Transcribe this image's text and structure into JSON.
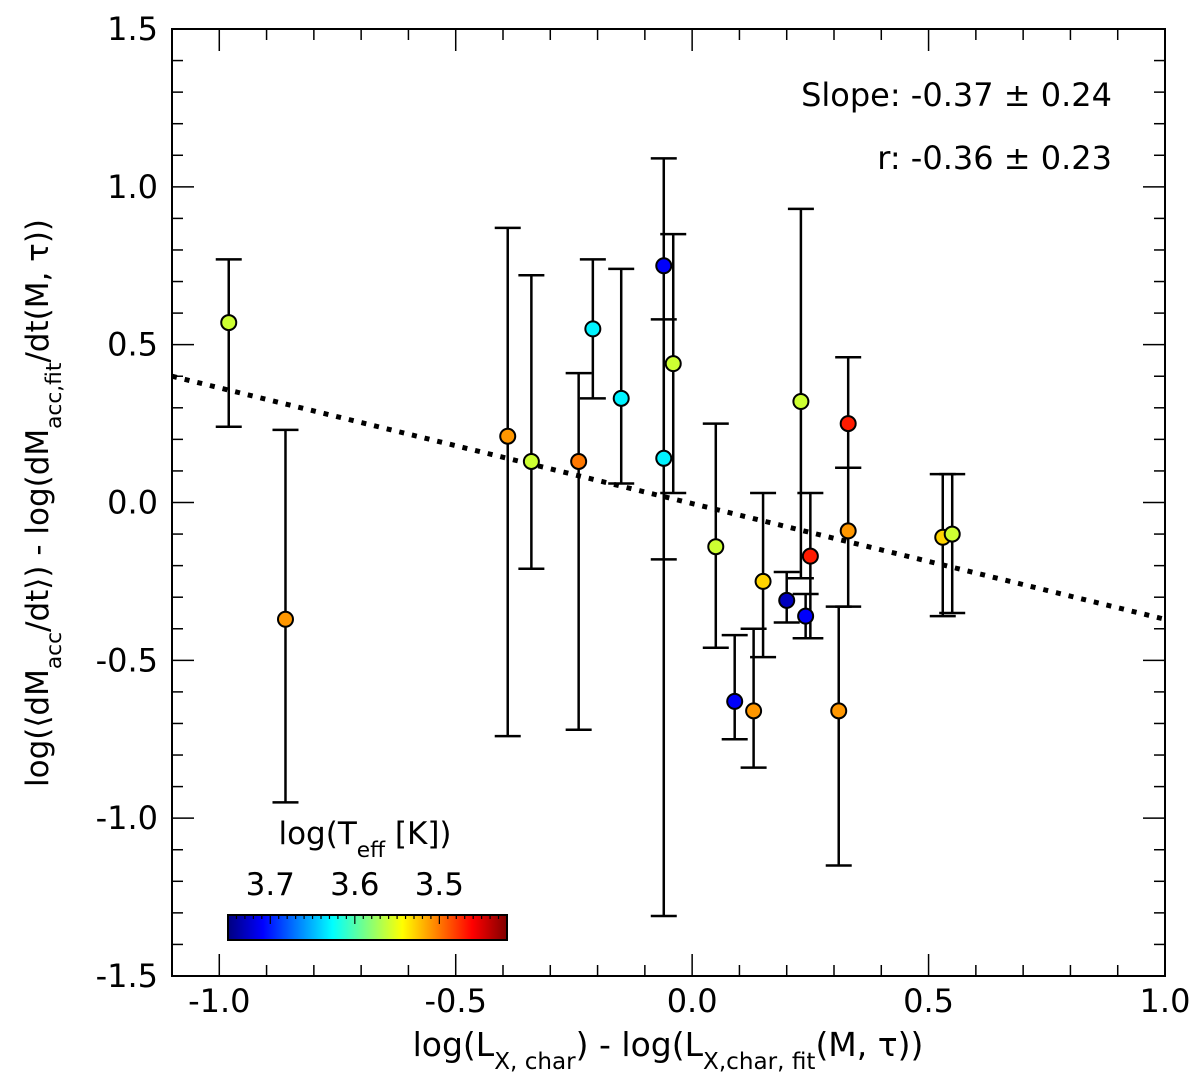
{
  "chart_data": {
    "type": "scatter",
    "title": "",
    "xlabel": "log(L_X, char) - log(L_X,char, fit(M, τ))",
    "ylabel": "log(⟨dM_acc/dt⟩) - log(dM_acc,fit/dt(M, τ))",
    "xlim": [
      -1.1,
      1.0
    ],
    "ylim": [
      -1.5,
      1.5
    ],
    "x_ticks": [
      -1.0,
      -0.5,
      0.0,
      0.5,
      1.0
    ],
    "x_tick_labels": [
      "-1.0",
      "-0.5",
      "0.0",
      "0.5",
      "1.0"
    ],
    "y_ticks": [
      -1.5,
      -1.0,
      -0.5,
      0.0,
      0.5,
      1.0,
      1.5
    ],
    "y_tick_labels": [
      "-1.5",
      "-1.0",
      "-0.5",
      "0.0",
      "0.5",
      "1.0",
      "1.5"
    ],
    "annotations": {
      "slope": "Slope: -0.37 ± 0.24",
      "r": "r: -0.36 ± 0.23"
    },
    "fit_line": {
      "style": "dotted",
      "x": [
        -1.1,
        1.0
      ],
      "y": [
        0.4,
        -0.37
      ]
    },
    "colorbar": {
      "label": "log(T_eff [K])",
      "colormap": "jet",
      "range": [
        3.75,
        3.42
      ],
      "tick_values": [
        3.7,
        3.6,
        3.5
      ],
      "tick_labels": [
        "3.7",
        "3.6",
        "3.5"
      ],
      "placement": "bottom-left"
    },
    "points": [
      {
        "x": -0.98,
        "y": 0.57,
        "ylo": 0.24,
        "yhi": 0.77,
        "logTeff": 3.56
      },
      {
        "x": -0.86,
        "y": -0.37,
        "ylo": -0.95,
        "yhi": 0.23,
        "logTeff": 3.51
      },
      {
        "x": -0.39,
        "y": 0.21,
        "ylo": -0.74,
        "yhi": 0.87,
        "logTeff": 3.51
      },
      {
        "x": -0.34,
        "y": 0.13,
        "ylo": -0.21,
        "yhi": 0.72,
        "logTeff": 3.56
      },
      {
        "x": -0.24,
        "y": 0.13,
        "ylo": -0.72,
        "yhi": 0.41,
        "logTeff": 3.5
      },
      {
        "x": -0.21,
        "y": 0.55,
        "ylo": 0.33,
        "yhi": 0.77,
        "logTeff": 3.63
      },
      {
        "x": -0.15,
        "y": 0.33,
        "ylo": 0.06,
        "yhi": 0.74,
        "logTeff": 3.63
      },
      {
        "x": -0.06,
        "y": 0.75,
        "ylo": -0.18,
        "yhi": 1.09,
        "logTeff": 3.71
      },
      {
        "x": -0.06,
        "y": 0.14,
        "ylo": -1.31,
        "yhi": 0.58,
        "logTeff": 3.63
      },
      {
        "x": -0.04,
        "y": 0.44,
        "ylo": 0.03,
        "yhi": 0.85,
        "logTeff": 3.56
      },
      {
        "x": 0.05,
        "y": -0.14,
        "ylo": -0.46,
        "yhi": 0.25,
        "logTeff": 3.56
      },
      {
        "x": 0.09,
        "y": -0.63,
        "ylo": -0.75,
        "yhi": -0.42,
        "logTeff": 3.71
      },
      {
        "x": 0.13,
        "y": -0.66,
        "ylo": -0.84,
        "yhi": -0.4,
        "logTeff": 3.51
      },
      {
        "x": 0.15,
        "y": -0.25,
        "ylo": -0.49,
        "yhi": 0.03,
        "logTeff": 3.53
      },
      {
        "x": 0.2,
        "y": -0.31,
        "ylo": -0.38,
        "yhi": -0.22,
        "logTeff": 3.73
      },
      {
        "x": 0.23,
        "y": 0.32,
        "ylo": -0.24,
        "yhi": 0.93,
        "logTeff": 3.56
      },
      {
        "x": 0.24,
        "y": -0.36,
        "ylo": -0.43,
        "yhi": -0.29,
        "logTeff": 3.71
      },
      {
        "x": 0.25,
        "y": -0.17,
        "ylo": -0.43,
        "yhi": 0.03,
        "logTeff": 3.47
      },
      {
        "x": 0.31,
        "y": -0.66,
        "ylo": -1.15,
        "yhi": -0.33,
        "logTeff": 3.51
      },
      {
        "x": 0.33,
        "y": 0.25,
        "ylo": 0.11,
        "yhi": 0.46,
        "logTeff": 3.47
      },
      {
        "x": 0.33,
        "y": -0.09,
        "ylo": -0.33,
        "yhi": 0.11,
        "logTeff": 3.51
      },
      {
        "x": 0.53,
        "y": -0.11,
        "ylo": -0.36,
        "yhi": 0.09,
        "logTeff": 3.53
      },
      {
        "x": 0.55,
        "y": -0.1,
        "ylo": -0.35,
        "yhi": 0.09,
        "logTeff": 3.56
      }
    ]
  }
}
